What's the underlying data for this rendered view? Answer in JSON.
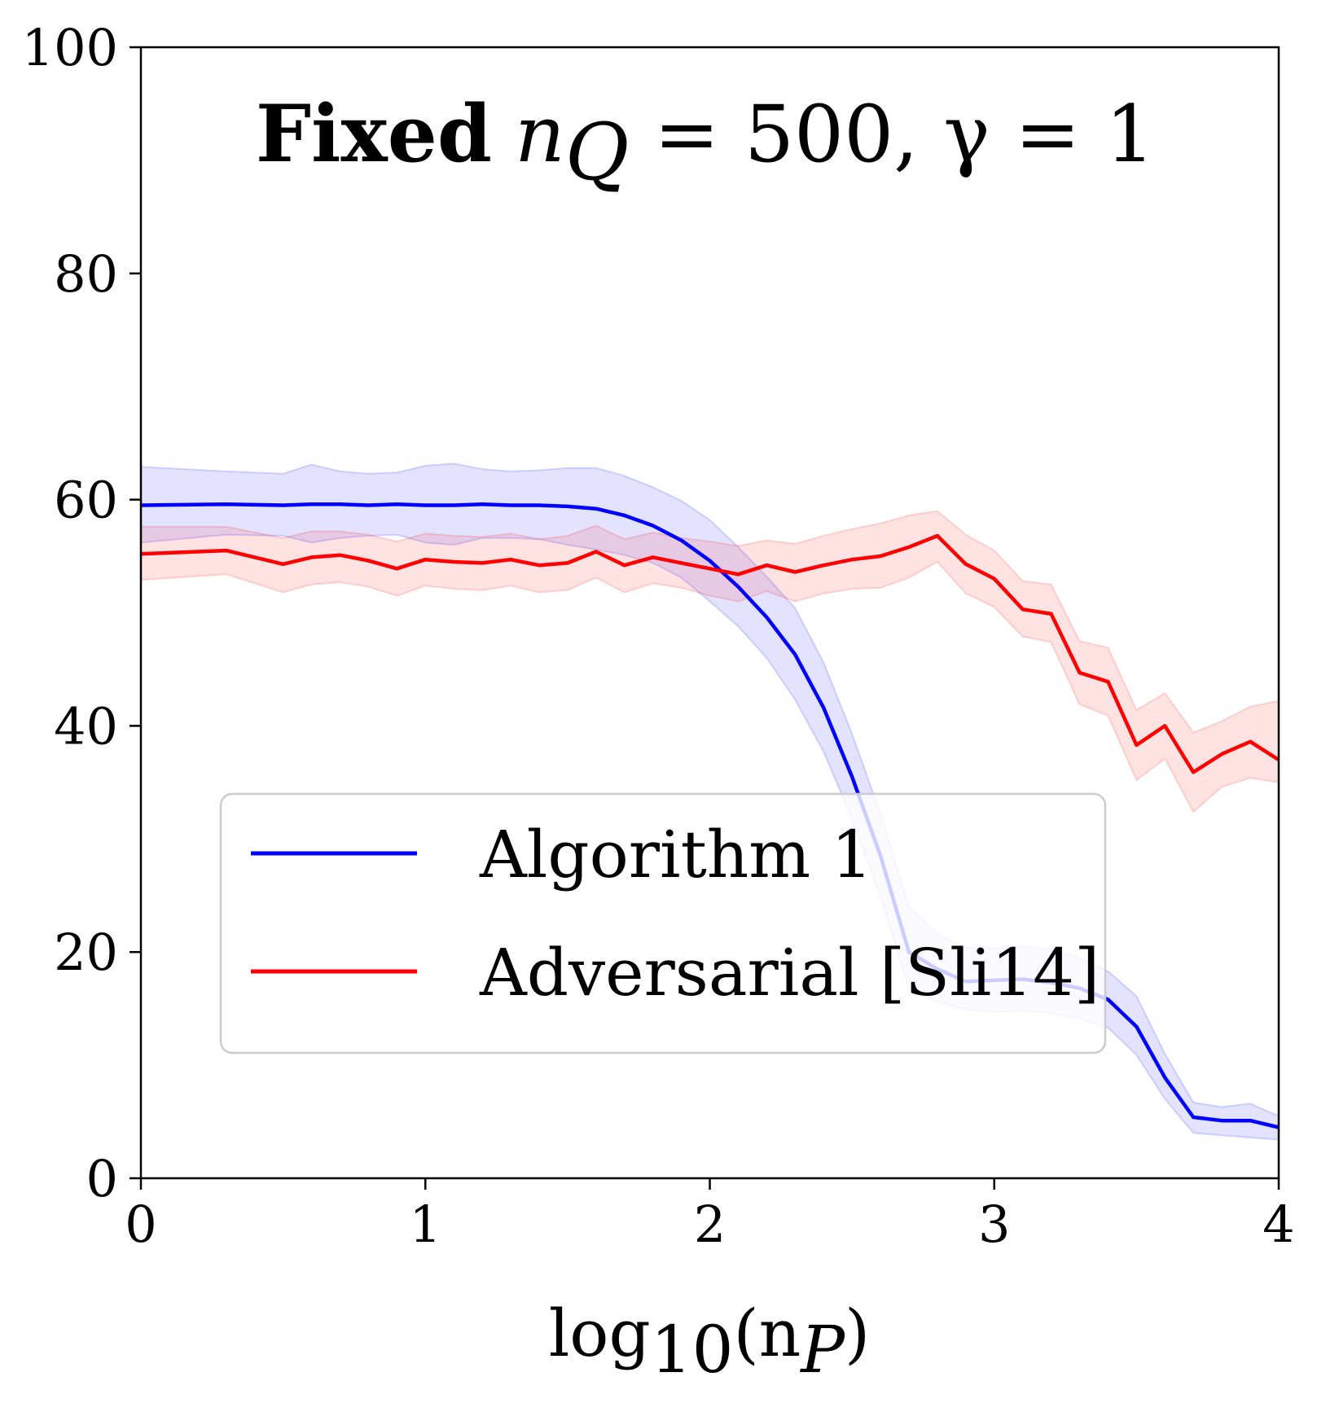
{
  "chart_data": {
    "type": "line",
    "title": {
      "bold": "Fixed",
      "math": "n",
      "math_sub": "Q",
      "math_rest": " = 500, γ = 1"
    },
    "xlabel": {
      "prefix": "log",
      "sub": "10",
      "open": "(n",
      "var_sub": "P",
      "close": ")"
    },
    "ylabel": "",
    "xlim": [
      0,
      4
    ],
    "ylim": [
      0,
      100
    ],
    "xticks": [
      "0",
      "1",
      "2",
      "3",
      "4"
    ],
    "yticks": [
      "0",
      "20",
      "40",
      "60",
      "80",
      "100"
    ],
    "legend_position": "lower-left",
    "series": [
      {
        "name": "Algorithm 1",
        "color": "#0000ff",
        "x": [
          0,
          0.3,
          0.5,
          0.6,
          0.7,
          0.8,
          0.9,
          1.0,
          1.1,
          1.2,
          1.3,
          1.4,
          1.5,
          1.6,
          1.7,
          1.8,
          1.9,
          2.0,
          2.1,
          2.2,
          2.3,
          2.4,
          2.5,
          2.6,
          2.7,
          2.8,
          2.9,
          3.0,
          3.1,
          3.2,
          3.3,
          3.4,
          3.5,
          3.6,
          3.7,
          3.8,
          3.9,
          4.0
        ],
        "y": [
          59.5,
          59.6,
          59.5,
          59.6,
          59.6,
          59.5,
          59.6,
          59.5,
          59.5,
          59.6,
          59.5,
          59.5,
          59.4,
          59.2,
          58.6,
          57.7,
          56.4,
          54.6,
          52.3,
          49.6,
          46.3,
          41.6,
          35.5,
          28.5,
          20.0,
          18.5,
          17.4,
          17.5,
          17.6,
          17.3,
          16.8,
          15.8,
          13.4,
          8.9,
          5.4,
          5.1,
          5.1,
          4.5
        ],
        "band": {
          "upper": [
            62.9,
            62.5,
            62.3,
            63.1,
            62.5,
            62.3,
            62.4,
            63.0,
            63.2,
            62.7,
            62.5,
            62.6,
            62.8,
            62.8,
            62.1,
            61.1,
            59.9,
            58.2,
            55.8,
            53.2,
            50.4,
            45.6,
            39.3,
            32.2,
            24.0,
            21.6,
            20.4,
            20.3,
            20.5,
            20.2,
            19.5,
            18.3,
            16.1,
            11.0,
            6.7,
            6.3,
            6.6,
            5.5
          ],
          "lower": [
            56.2,
            56.9,
            56.8,
            56.2,
            56.6,
            56.8,
            56.9,
            56.2,
            56.0,
            56.6,
            56.6,
            56.5,
            56.0,
            55.6,
            55.1,
            54.4,
            53.1,
            51.0,
            48.8,
            46.0,
            42.3,
            37.7,
            31.8,
            24.9,
            16.8,
            15.6,
            14.9,
            14.7,
            14.8,
            14.6,
            14.1,
            13.3,
            10.9,
            7.0,
            4.0,
            3.8,
            3.6,
            3.4
          ]
        }
      },
      {
        "name": "Adversarial [Sli14]",
        "color": "#ff0000",
        "x": [
          0,
          0.3,
          0.5,
          0.6,
          0.7,
          0.8,
          0.9,
          1.0,
          1.1,
          1.2,
          1.3,
          1.4,
          1.5,
          1.6,
          1.7,
          1.8,
          1.9,
          2.0,
          2.1,
          2.2,
          2.3,
          2.4,
          2.5,
          2.6,
          2.7,
          2.8,
          2.9,
          3.0,
          3.1,
          3.2,
          3.3,
          3.4,
          3.5,
          3.6,
          3.7,
          3.8,
          3.9,
          4.0
        ],
        "y": [
          55.2,
          55.5,
          54.3,
          54.9,
          55.1,
          54.6,
          53.9,
          54.7,
          54.5,
          54.4,
          54.7,
          54.2,
          54.4,
          55.4,
          54.2,
          54.9,
          54.4,
          53.9,
          53.4,
          54.2,
          53.6,
          54.2,
          54.7,
          55.0,
          55.8,
          56.8,
          54.3,
          53.0,
          50.3,
          49.9,
          44.7,
          43.9,
          38.3,
          40.0,
          35.9,
          37.5,
          38.6,
          37.0
        ],
        "band": {
          "upper": [
            57.6,
            57.6,
            56.6,
            57.2,
            57.2,
            56.9,
            56.3,
            57.0,
            56.8,
            56.7,
            57.0,
            56.5,
            56.8,
            57.7,
            56.5,
            57.1,
            56.6,
            56.3,
            55.9,
            56.4,
            56.1,
            56.8,
            57.4,
            57.9,
            58.6,
            59.0,
            56.9,
            55.5,
            52.8,
            52.5,
            47.5,
            46.9,
            41.4,
            42.9,
            39.4,
            40.4,
            41.7,
            42.2
          ],
          "lower": [
            52.9,
            53.4,
            51.8,
            52.5,
            52.7,
            52.3,
            51.5,
            52.4,
            52.1,
            52.0,
            52.4,
            51.8,
            52.0,
            53.1,
            51.8,
            52.6,
            52.2,
            51.5,
            51.0,
            51.9,
            51.0,
            51.7,
            52.1,
            52.2,
            53.1,
            54.5,
            51.7,
            50.5,
            47.9,
            47.4,
            41.9,
            40.9,
            35.2,
            37.1,
            32.4,
            34.6,
            35.4,
            35.0
          ]
        }
      }
    ]
  }
}
